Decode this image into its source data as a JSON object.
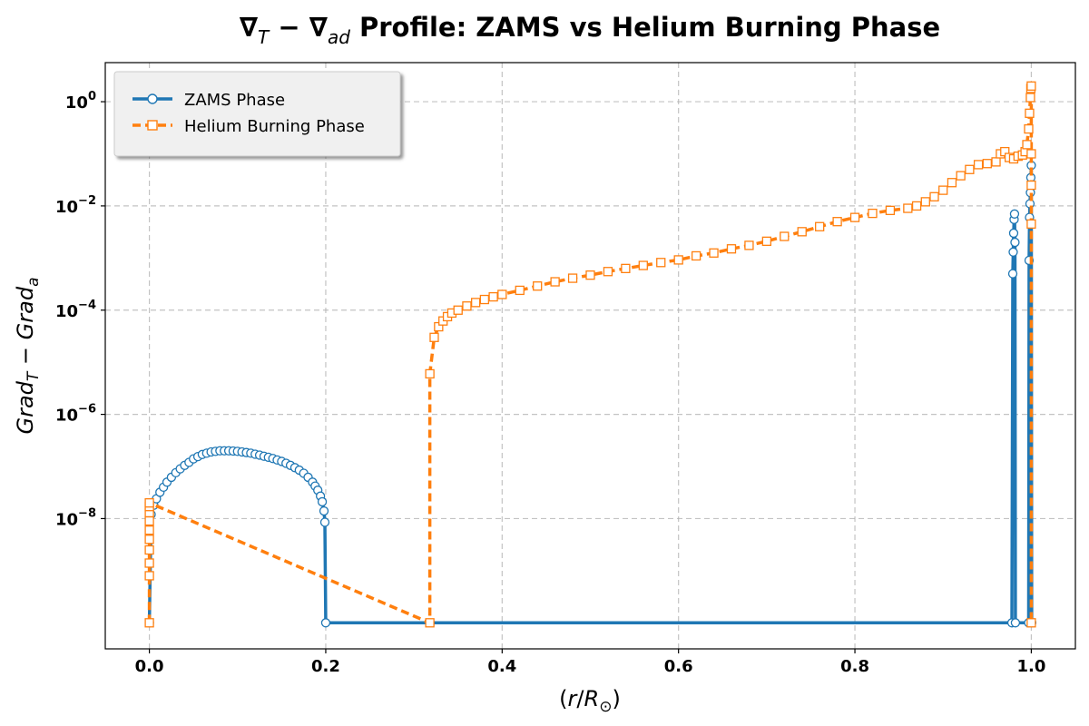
{
  "chart_data": {
    "type": "line",
    "title": {
      "prefix": "∇",
      "sub_t": "T",
      "minus": " − ∇",
      "sub_ad": "ad",
      "rest": " Profile: ZAMS vs Helium Burning Phase"
    },
    "xlabel": {
      "open": "(",
      "r": "r",
      "slash": "/",
      "R": "R",
      "sub": "⊙",
      "close": ")"
    },
    "ylabel": {
      "grad1": "Grad",
      "sub1": "T",
      "minus": " − ",
      "grad2": "Grad",
      "sub2": "a"
    },
    "xlim": [
      -0.05,
      1.05
    ],
    "ylim_log10": [
      -10.5,
      0.75
    ],
    "y_scale": "log",
    "grid": true,
    "legend_placement": "top-left",
    "x_ticks": [
      {
        "value": 0.0,
        "label": "0.0"
      },
      {
        "value": 0.2,
        "label": "0.2"
      },
      {
        "value": 0.4,
        "label": "0.4"
      },
      {
        "value": 0.6,
        "label": "0.6"
      },
      {
        "value": 0.8,
        "label": "0.8"
      },
      {
        "value": 1.0,
        "label": "1.0"
      }
    ],
    "y_ticks": [
      {
        "exp": 0,
        "base": "10",
        "sup": "0"
      },
      {
        "exp": -2,
        "base": "10",
        "sup": "−2"
      },
      {
        "exp": -4,
        "base": "10",
        "sup": "−4"
      },
      {
        "exp": -6,
        "base": "10",
        "sup": "−6"
      },
      {
        "exp": -8,
        "base": "10",
        "sup": "−8"
      }
    ],
    "series": [
      {
        "name": "ZAMS Phase",
        "color": "#1f77b4",
        "line_style": "solid",
        "marker": "circle",
        "points": [
          [
            0.0,
            1e-10
          ],
          [
            0.002,
            1.2e-08
          ],
          [
            0.005,
            1.8e-08
          ],
          [
            0.008,
            2.4e-08
          ],
          [
            0.012,
            3.2e-08
          ],
          [
            0.016,
            4e-08
          ],
          [
            0.02,
            5e-08
          ],
          [
            0.025,
            6.2e-08
          ],
          [
            0.03,
            7.6e-08
          ],
          [
            0.035,
            9e-08
          ],
          [
            0.04,
            1.05e-07
          ],
          [
            0.045,
            1.2e-07
          ],
          [
            0.05,
            1.4e-07
          ],
          [
            0.055,
            1.55e-07
          ],
          [
            0.06,
            1.7e-07
          ],
          [
            0.065,
            1.8e-07
          ],
          [
            0.07,
            1.9e-07
          ],
          [
            0.075,
            1.95e-07
          ],
          [
            0.08,
            2e-07
          ],
          [
            0.085,
            2e-07
          ],
          [
            0.09,
            2e-07
          ],
          [
            0.095,
            1.98e-07
          ],
          [
            0.1,
            1.95e-07
          ],
          [
            0.105,
            1.9e-07
          ],
          [
            0.11,
            1.85e-07
          ],
          [
            0.115,
            1.8e-07
          ],
          [
            0.12,
            1.72e-07
          ],
          [
            0.125,
            1.65e-07
          ],
          [
            0.13,
            1.57e-07
          ],
          [
            0.135,
            1.5e-07
          ],
          [
            0.14,
            1.42e-07
          ],
          [
            0.145,
            1.33e-07
          ],
          [
            0.15,
            1.25e-07
          ],
          [
            0.155,
            1.15e-07
          ],
          [
            0.16,
            1.05e-07
          ],
          [
            0.165,
            9.5e-08
          ],
          [
            0.17,
            8.5e-08
          ],
          [
            0.175,
            7.4e-08
          ],
          [
            0.18,
            6.2e-08
          ],
          [
            0.185,
            5e-08
          ],
          [
            0.188,
            4.2e-08
          ],
          [
            0.191,
            3.5e-08
          ],
          [
            0.194,
            2.7e-08
          ],
          [
            0.196,
            2.1e-08
          ],
          [
            0.198,
            1.4e-08
          ],
          [
            0.199,
            8.5e-09
          ],
          [
            0.2,
            1e-10
          ],
          [
            0.978,
            1e-10
          ],
          [
            0.979,
            0.0005
          ],
          [
            0.9795,
            0.0013
          ],
          [
            0.98,
            0.003
          ],
          [
            0.9805,
            0.0055
          ],
          [
            0.981,
            0.007
          ],
          [
            0.9815,
            0.002
          ],
          [
            0.982,
            1e-10
          ],
          [
            0.997,
            1e-10
          ],
          [
            0.9975,
            0.0009
          ],
          [
            0.998,
            0.006
          ],
          [
            0.9985,
            0.011
          ],
          [
            0.999,
            0.018
          ],
          [
            0.9995,
            0.035
          ],
          [
            1.0,
            0.06
          ],
          [
            1.0005,
            1e-10
          ]
        ]
      },
      {
        "name": "Helium Burning Phase",
        "color": "#ff7f0e",
        "line_style": "dashed",
        "marker": "square",
        "points": [
          [
            0.0,
            1e-10
          ],
          [
            0.0,
            8e-10
          ],
          [
            0.0,
            1.4e-09
          ],
          [
            0.0,
            2.5e-09
          ],
          [
            0.0,
            4e-09
          ],
          [
            0.0,
            6e-09
          ],
          [
            0.0,
            9e-09
          ],
          [
            0.0,
            1.3e-08
          ],
          [
            0.0,
            1.7e-08
          ],
          [
            0.0,
            2e-08
          ],
          [
            0.318,
            1e-10
          ],
          [
            0.318,
            6e-06
          ],
          [
            0.323,
            3e-05
          ],
          [
            0.328,
            4.8e-05
          ],
          [
            0.333,
            6.2e-05
          ],
          [
            0.338,
            7.5e-05
          ],
          [
            0.343,
            8.8e-05
          ],
          [
            0.35,
            0.0001
          ],
          [
            0.36,
            0.00012
          ],
          [
            0.37,
            0.00014
          ],
          [
            0.38,
            0.00016
          ],
          [
            0.39,
            0.00018
          ],
          [
            0.4,
            0.0002
          ],
          [
            0.42,
            0.00024
          ],
          [
            0.44,
            0.00029
          ],
          [
            0.46,
            0.00035
          ],
          [
            0.48,
            0.00041
          ],
          [
            0.5,
            0.00047
          ],
          [
            0.52,
            0.00055
          ],
          [
            0.54,
            0.00063
          ],
          [
            0.56,
            0.00072
          ],
          [
            0.58,
            0.00082
          ],
          [
            0.6,
            0.00092
          ],
          [
            0.62,
            0.0011
          ],
          [
            0.64,
            0.00125
          ],
          [
            0.66,
            0.0015
          ],
          [
            0.68,
            0.00175
          ],
          [
            0.7,
            0.0021
          ],
          [
            0.72,
            0.0026
          ],
          [
            0.74,
            0.0032
          ],
          [
            0.76,
            0.004
          ],
          [
            0.78,
            0.005
          ],
          [
            0.8,
            0.006
          ],
          [
            0.82,
            0.0072
          ],
          [
            0.84,
            0.0082
          ],
          [
            0.86,
            0.009
          ],
          [
            0.87,
            0.01
          ],
          [
            0.88,
            0.012
          ],
          [
            0.89,
            0.015
          ],
          [
            0.9,
            0.02
          ],
          [
            0.91,
            0.028
          ],
          [
            0.92,
            0.038
          ],
          [
            0.93,
            0.05
          ],
          [
            0.94,
            0.062
          ],
          [
            0.95,
            0.065
          ],
          [
            0.96,
            0.07
          ],
          [
            0.965,
            0.1
          ],
          [
            0.97,
            0.11
          ],
          [
            0.975,
            0.085
          ],
          [
            0.98,
            0.08
          ],
          [
            0.985,
            0.09
          ],
          [
            0.99,
            0.095
          ],
          [
            0.993,
            0.11
          ],
          [
            0.995,
            0.15
          ],
          [
            0.997,
            0.3
          ],
          [
            0.998,
            0.6
          ],
          [
            0.999,
            1.2
          ],
          [
            0.9995,
            1.8
          ],
          [
            1.0,
            2.0
          ],
          [
            1.0,
            0.1
          ],
          [
            1.0,
            0.025
          ],
          [
            1.0,
            0.0045
          ],
          [
            1.0,
            1e-10
          ]
        ]
      }
    ]
  }
}
